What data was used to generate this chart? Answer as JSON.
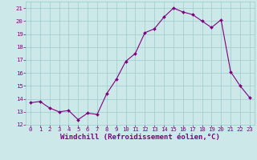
{
  "hours": [
    0,
    1,
    2,
    3,
    4,
    5,
    6,
    7,
    8,
    9,
    10,
    11,
    12,
    13,
    14,
    15,
    16,
    17,
    18,
    19,
    20,
    21,
    22,
    23
  ],
  "windchill": [
    13.7,
    13.8,
    13.3,
    13.0,
    13.1,
    12.4,
    12.9,
    12.8,
    14.4,
    15.5,
    16.9,
    17.5,
    19.1,
    19.4,
    20.3,
    21.0,
    20.7,
    20.5,
    20.0,
    19.5,
    20.1,
    16.1,
    15.0,
    14.1
  ],
  "line_color": "#800080",
  "marker": "D",
  "marker_size": 2.0,
  "bg_color": "#cce8e8",
  "grid_color": "#99cccc",
  "xlabel": "Windchill (Refroidissement éolien,°C)",
  "xlabel_color": "#800080",
  "ylim": [
    12,
    21.5
  ],
  "yticks": [
    12,
    13,
    14,
    15,
    16,
    17,
    18,
    19,
    20,
    21
  ],
  "xlim": [
    -0.5,
    23.5
  ],
  "xtick_labels": [
    "0",
    "1",
    "2",
    "3",
    "4",
    "5",
    "6",
    "7",
    "8",
    "9",
    "10",
    "11",
    "12",
    "13",
    "14",
    "15",
    "16",
    "17",
    "18",
    "19",
    "20",
    "21",
    "22",
    "23"
  ],
  "tick_color": "#800080",
  "tick_labelsize": 5.2,
  "xlabel_fontsize": 6.5,
  "linewidth": 0.8,
  "marker_edge_width": 0.3
}
